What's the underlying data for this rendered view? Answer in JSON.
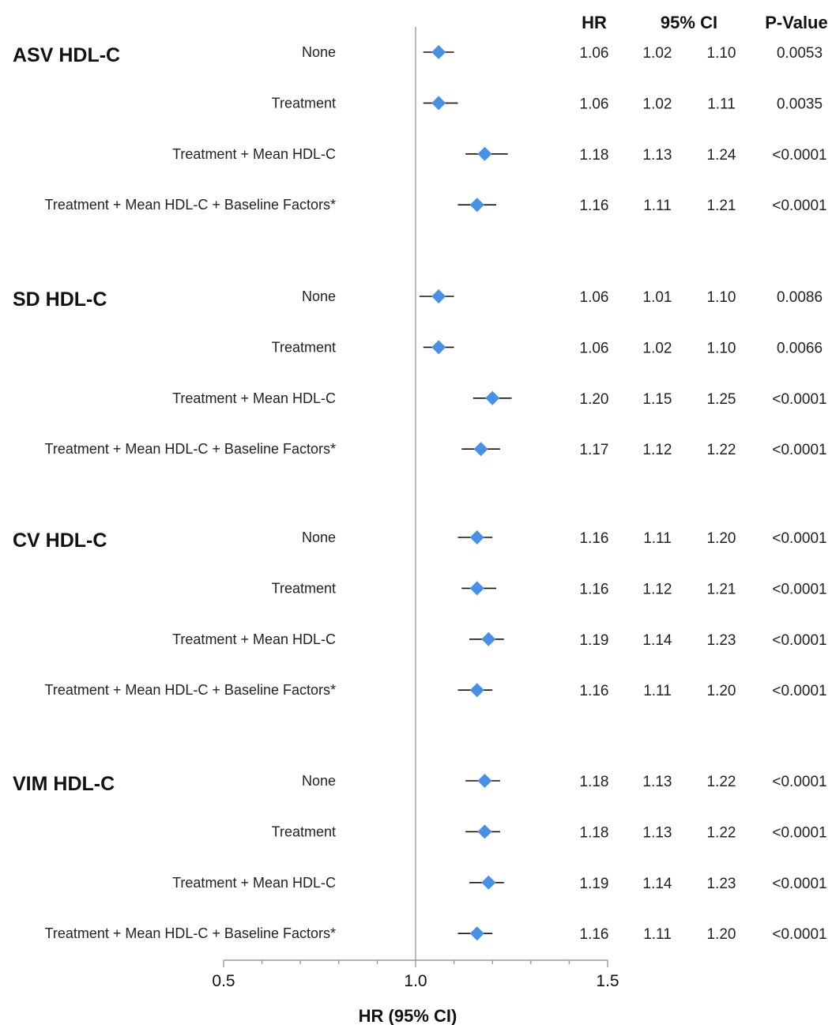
{
  "chart_data": {
    "type": "forest",
    "xlabel": "HR (95% CI)",
    "xlim": [
      0.5,
      1.5
    ],
    "xticks": [
      "0.5",
      "1.0",
      "1.5"
    ],
    "reference_line": 1.0,
    "marker_color": "#4a90e2",
    "headers": {
      "hr": "HR",
      "ci": "95% CI",
      "p": "P-Value"
    },
    "groups": [
      {
        "name": "ASV HDL-C",
        "rows": [
          {
            "adjustment": "None",
            "hr": 1.06,
            "hr_text": "1.06",
            "lower": 1.02,
            "lower_text": "1.02",
            "upper": 1.1,
            "upper_text": "1.10",
            "p": "0.0053"
          },
          {
            "adjustment": "Treatment",
            "hr": 1.06,
            "hr_text": "1.06",
            "lower": 1.02,
            "lower_text": "1.02",
            "upper": 1.11,
            "upper_text": "1.11",
            "p": "0.0035"
          },
          {
            "adjustment": "Treatment + Mean HDL-C",
            "hr": 1.18,
            "hr_text": "1.18",
            "lower": 1.13,
            "lower_text": "1.13",
            "upper": 1.24,
            "upper_text": "1.24",
            "p": "<0.0001"
          },
          {
            "adjustment": "Treatment + Mean HDL-C + Baseline Factors*",
            "hr": 1.16,
            "hr_text": "1.16",
            "lower": 1.11,
            "lower_text": "1.11",
            "upper": 1.21,
            "upper_text": "1.21",
            "p": "<0.0001"
          }
        ]
      },
      {
        "name": "SD HDL-C",
        "rows": [
          {
            "adjustment": "None",
            "hr": 1.06,
            "hr_text": "1.06",
            "lower": 1.01,
            "lower_text": "1.01",
            "upper": 1.1,
            "upper_text": "1.10",
            "p": "0.0086"
          },
          {
            "adjustment": "Treatment",
            "hr": 1.06,
            "hr_text": "1.06",
            "lower": 1.02,
            "lower_text": "1.02",
            "upper": 1.1,
            "upper_text": "1.10",
            "p": "0.0066"
          },
          {
            "adjustment": "Treatment + Mean HDL-C",
            "hr": 1.2,
            "hr_text": "1.20",
            "lower": 1.15,
            "lower_text": "1.15",
            "upper": 1.25,
            "upper_text": "1.25",
            "p": "<0.0001"
          },
          {
            "adjustment": "Treatment + Mean HDL-C + Baseline Factors*",
            "hr": 1.17,
            "hr_text": "1.17",
            "lower": 1.12,
            "lower_text": "1.12",
            "upper": 1.22,
            "upper_text": "1.22",
            "p": "<0.0001"
          }
        ]
      },
      {
        "name": "CV HDL-C",
        "rows": [
          {
            "adjustment": "None",
            "hr": 1.16,
            "hr_text": "1.16",
            "lower": 1.11,
            "lower_text": "1.11",
            "upper": 1.2,
            "upper_text": "1.20",
            "p": "<0.0001"
          },
          {
            "adjustment": "Treatment",
            "hr": 1.16,
            "hr_text": "1.16",
            "lower": 1.12,
            "lower_text": "1.12",
            "upper": 1.21,
            "upper_text": "1.21",
            "p": "<0.0001"
          },
          {
            "adjustment": "Treatment + Mean HDL-C",
            "hr": 1.19,
            "hr_text": "1.19",
            "lower": 1.14,
            "lower_text": "1.14",
            "upper": 1.23,
            "upper_text": "1.23",
            "p": "<0.0001"
          },
          {
            "adjustment": "Treatment + Mean HDL-C + Baseline Factors*",
            "hr": 1.16,
            "hr_text": "1.16",
            "lower": 1.11,
            "lower_text": "1.11",
            "upper": 1.2,
            "upper_text": "1.20",
            "p": "<0.0001"
          }
        ]
      },
      {
        "name": "VIM HDL-C",
        "rows": [
          {
            "adjustment": "None",
            "hr": 1.18,
            "hr_text": "1.18",
            "lower": 1.13,
            "lower_text": "1.13",
            "upper": 1.22,
            "upper_text": "1.22",
            "p": "<0.0001"
          },
          {
            "adjustment": "Treatment",
            "hr": 1.18,
            "hr_text": "1.18",
            "lower": 1.13,
            "lower_text": "1.13",
            "upper": 1.22,
            "upper_text": "1.22",
            "p": "<0.0001"
          },
          {
            "adjustment": "Treatment + Mean HDL-C",
            "hr": 1.19,
            "hr_text": "1.19",
            "lower": 1.14,
            "lower_text": "1.14",
            "upper": 1.23,
            "upper_text": "1.23",
            "p": "<0.0001"
          },
          {
            "adjustment": "Treatment + Mean HDL-C + Baseline Factors*",
            "hr": 1.16,
            "hr_text": "1.16",
            "lower": 1.11,
            "lower_text": "1.11",
            "upper": 1.2,
            "upper_text": "1.20",
            "p": "<0.0001"
          }
        ]
      }
    ]
  }
}
